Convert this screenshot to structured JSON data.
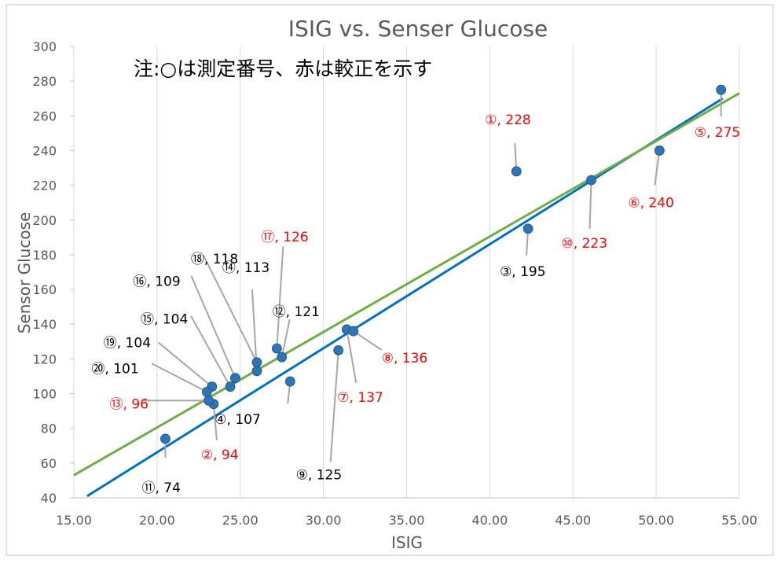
{
  "chart_data": {
    "type": "scatter",
    "title": "ISIG vs. Senser Glucose",
    "note": "注:○は測定番号、赤は較正を示す",
    "xlabel": "ISIG",
    "ylabel": "Sensor Glucose",
    "xlim": [
      15,
      55
    ],
    "ylim": [
      40,
      300
    ],
    "x_ticks": [
      "15.00",
      "20.00",
      "25.00",
      "30.00",
      "35.00",
      "40.00",
      "45.00",
      "50.00",
      "55.00"
    ],
    "y_ticks": [
      "40",
      "60",
      "80",
      "100",
      "120",
      "140",
      "160",
      "180",
      "200",
      "220",
      "240",
      "260",
      "280",
      "300"
    ],
    "grid": "vertical",
    "colors": {
      "marker": "#2e75b6",
      "calibration_label": "#ff0000",
      "normal_label": "#000000",
      "line_blue": "#0070c0",
      "line_green": "#70ad47",
      "leader": "#a6a6a6"
    },
    "trend_lines": [
      {
        "color": "#0070c0",
        "x": [
          15.8,
          54.0
        ],
        "y": [
          41,
          270
        ]
      },
      {
        "color": "#70ad47",
        "x": [
          15.0,
          55.0
        ],
        "y": [
          53,
          273
        ]
      }
    ],
    "points": [
      {
        "x": 41.6,
        "y": 228,
        "label": "①, 228",
        "calibration": true
      },
      {
        "x": 23.4,
        "y": 94,
        "label": "②, 94",
        "calibration": true
      },
      {
        "x": 42.3,
        "y": 195,
        "label": "③, 195",
        "calibration": false
      },
      {
        "x": 28.0,
        "y": 107,
        "label": "④, 107",
        "calibration": false
      },
      {
        "x": 53.9,
        "y": 275,
        "label": "⑤, 275",
        "calibration": true
      },
      {
        "x": 50.2,
        "y": 240,
        "label": "⑥, 240",
        "calibration": true
      },
      {
        "x": 31.4,
        "y": 137,
        "label": "⑦, 137",
        "calibration": true
      },
      {
        "x": 31.8,
        "y": 136,
        "label": "⑧, 136",
        "calibration": true
      },
      {
        "x": 30.9,
        "y": 125,
        "label": "⑨, 125",
        "calibration": false
      },
      {
        "x": 46.1,
        "y": 223,
        "label": "⑩, 223",
        "calibration": true
      },
      {
        "x": 20.5,
        "y": 74,
        "label": "⑪, 74",
        "calibration": false
      },
      {
        "x": 27.5,
        "y": 121,
        "label": "⑫, 121",
        "calibration": false
      },
      {
        "x": 23.1,
        "y": 96,
        "label": "⑬, 96",
        "calibration": true
      },
      {
        "x": 26.0,
        "y": 113,
        "label": "⑭, 113",
        "calibration": false
      },
      {
        "x": 24.4,
        "y": 104,
        "label": "⑮, 104",
        "calibration": false
      },
      {
        "x": 24.7,
        "y": 109,
        "label": "⑯, 109",
        "calibration": false
      },
      {
        "x": 27.2,
        "y": 126,
        "label": "⑰, 126",
        "calibration": true
      },
      {
        "x": 26.0,
        "y": 118,
        "label": "⑱, 118",
        "calibration": false
      },
      {
        "x": 23.3,
        "y": 104,
        "label": "⑲, 104",
        "calibration": false
      },
      {
        "x": 23.0,
        "y": 101,
        "label": "⑳, 101",
        "calibration": false
      }
    ]
  }
}
